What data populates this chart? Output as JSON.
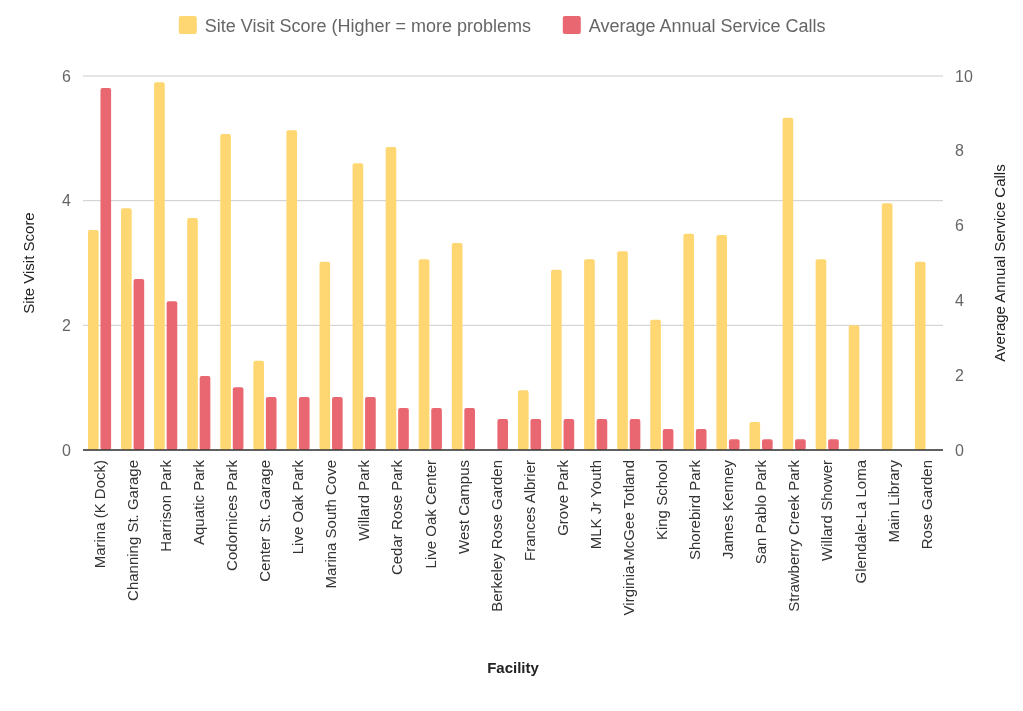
{
  "chart_data": {
    "type": "bar",
    "xlabel": "Facility",
    "ylabel": "Site Visit Score",
    "y2label": "Average Annual Service Calls",
    "categories": [
      "Marina (K Dock)",
      "Channing St. Garage",
      "Harrison Park",
      "Aquatic Park",
      "Codornices Park",
      "Center St. Garage",
      "Live Oak Park",
      "Marina South Cove",
      "Willard Park",
      "Cedar Rose Park",
      "Live Oak Center",
      "West Campus",
      "Berkeley Rose Garden",
      "Frances Albrier",
      "Grove Park",
      "MLK Jr Youth",
      "Virginia-McGee Totland",
      "King School",
      "Shorebird Park",
      "James Kenney",
      "San Pablo Park",
      "Strawberry Creek Park",
      "Willard Shower",
      "Glendale-La Loma",
      "Main Library",
      "Rose Garden"
    ],
    "series": [
      {
        "name": "Site Visit Score (Higher = more problems",
        "color": "#ffd772",
        "values": [
          3.53,
          3.88,
          5.9,
          3.72,
          5.07,
          1.43,
          5.13,
          3.02,
          4.6,
          4.86,
          3.06,
          3.32,
          0,
          0.96,
          2.89,
          3.06,
          3.19,
          2.09,
          3.47,
          3.45,
          0.45,
          5.33,
          3.06,
          2.0,
          3.96,
          3.02
        ]
      },
      {
        "name": "Average Annual Service Calls",
        "color": "#e96770",
        "axis": "y2",
        "values": [
          9.68,
          4.57,
          3.98,
          1.98,
          1.68,
          1.42,
          1.42,
          1.42,
          1.42,
          1.12,
          1.12,
          1.12,
          0.83,
          0.83,
          0.83,
          0.83,
          0.83,
          0.56,
          0.56,
          0.29,
          0.29,
          0.29,
          0.29,
          0,
          0,
          0
        ]
      }
    ],
    "ylim": [
      0,
      6
    ],
    "yticks": [
      0,
      2,
      4,
      6
    ],
    "y2lim": [
      0,
      10
    ],
    "y2ticks": [
      0,
      2,
      4,
      6,
      8,
      10
    ],
    "grid": "y",
    "legend": "top"
  }
}
